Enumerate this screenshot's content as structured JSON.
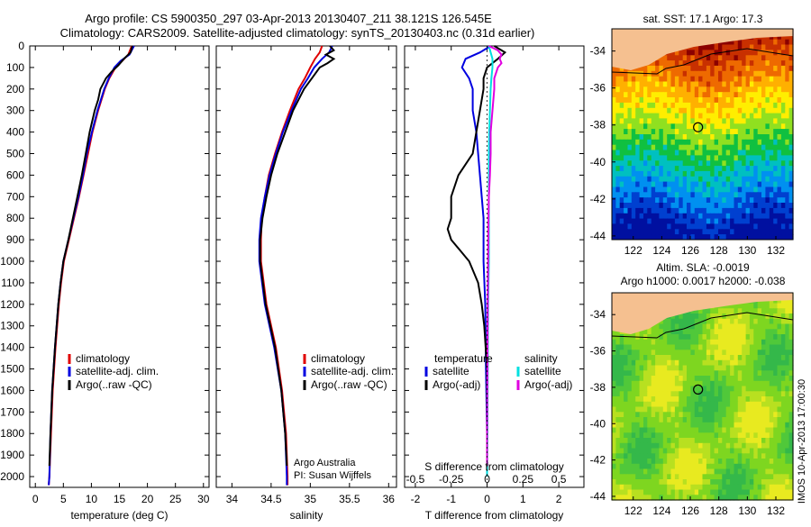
{
  "header": {
    "line1": "Argo profile: CS 5900350_297 03-Apr-2013 20130407_211 38.121S 126.545E",
    "line2": "Climatology: CARS2009. Satellite-adjusted climatology: synTS_20130403.nc (0.31d earlier)"
  },
  "colors": {
    "climatology": "#e00000",
    "satellite": "#0000e0",
    "argo": "#000000",
    "satellite_s": "#00e0e0",
    "argo_s": "#e000e0",
    "land": "#f5c090"
  },
  "chart_data": [
    {
      "type": "line",
      "panel": "temperature",
      "xlabel": "temperature (deg C)",
      "xlim": [
        -1,
        31
      ],
      "xticks": [
        0,
        5,
        10,
        15,
        20,
        25,
        30
      ],
      "ylim": [
        2050,
        0
      ],
      "yticks": [
        0,
        100,
        200,
        300,
        400,
        500,
        600,
        700,
        800,
        900,
        1000,
        1100,
        1200,
        1300,
        1400,
        1500,
        1600,
        1700,
        1800,
        1900,
        2000
      ],
      "legend": [
        "climatology",
        "satellite-adj. clim.",
        "Argo(..raw -QC)"
      ],
      "series": [
        {
          "name": "climatology",
          "color": "#e00000",
          "depth": [
            0,
            40,
            70,
            100,
            150,
            200,
            300,
            400,
            500,
            600,
            700,
            800,
            900,
            1000,
            1100,
            1200,
            1400,
            1600,
            1800,
            2000,
            2040
          ],
          "values": [
            17.2,
            16.6,
            15.5,
            14.3,
            13.2,
            12.4,
            11.2,
            10.2,
            9.4,
            8.6,
            7.8,
            6.9,
            6.0,
            5.1,
            4.6,
            4.2,
            3.6,
            3.1,
            2.8,
            2.5,
            2.4
          ]
        },
        {
          "name": "satellite-adj. clim.",
          "color": "#0000e0",
          "depth": [
            0,
            40,
            70,
            100,
            150,
            200,
            300,
            400,
            500,
            600,
            700,
            800,
            900,
            1000,
            1100,
            1200,
            1400,
            1600,
            1800,
            2000,
            2040
          ],
          "values": [
            17.6,
            16.8,
            15.2,
            14.1,
            13.1,
            12.3,
            11.1,
            10.1,
            9.2,
            8.5,
            7.7,
            6.8,
            5.9,
            5.0,
            4.5,
            4.1,
            3.5,
            3.0,
            2.7,
            2.5,
            2.4
          ]
        },
        {
          "name": "Argo(..raw -QC)",
          "color": "#000000",
          "depth": [
            0,
            30,
            60,
            90,
            120,
            150,
            200,
            250,
            300,
            400,
            500,
            600,
            700,
            800,
            900,
            1000,
            1100,
            1200,
            1400,
            1600,
            1800,
            1950
          ],
          "values": [
            17.3,
            17.0,
            15.8,
            14.8,
            13.6,
            12.6,
            11.6,
            11.2,
            10.6,
            9.7,
            9.0,
            8.3,
            7.5,
            6.7,
            5.9,
            5.0,
            4.5,
            4.1,
            3.5,
            3.0,
            2.7,
            2.5
          ]
        }
      ]
    },
    {
      "type": "line",
      "panel": "salinity",
      "xlabel": "salinity",
      "xlim": [
        33.8,
        36.1
      ],
      "xticks": [
        34,
        34.5,
        35,
        35.5,
        36
      ],
      "ylim": [
        2050,
        0
      ],
      "legend": [
        "climatology",
        "satellite-adj. clim.",
        "Argo(..raw -QC)"
      ],
      "annotation": [
        "Argo Australia",
        "PI: Susan Wijffels"
      ],
      "series": [
        {
          "name": "climatology",
          "color": "#e00000",
          "depth": [
            0,
            30,
            60,
            100,
            150,
            200,
            300,
            400,
            500,
            600,
            700,
            800,
            900,
            1000,
            1200,
            1400,
            1600,
            1800,
            2000,
            2040
          ],
          "values": [
            35.15,
            35.12,
            35.06,
            35.0,
            34.93,
            34.85,
            34.74,
            34.64,
            34.55,
            34.47,
            34.42,
            34.38,
            34.37,
            34.37,
            34.44,
            34.56,
            34.64,
            34.69,
            34.71,
            34.71
          ]
        },
        {
          "name": "satellite-adj. clim.",
          "color": "#0000e0",
          "depth": [
            0,
            30,
            60,
            100,
            150,
            200,
            300,
            400,
            500,
            600,
            700,
            800,
            900,
            1000,
            1200,
            1400,
            1600,
            1800,
            2000,
            2040
          ],
          "values": [
            35.28,
            35.24,
            35.15,
            35.05,
            34.97,
            34.88,
            34.76,
            34.65,
            34.56,
            34.48,
            34.42,
            34.37,
            34.35,
            34.35,
            34.42,
            34.54,
            34.63,
            34.68,
            34.7,
            34.7
          ]
        },
        {
          "name": "Argo(..raw -QC)",
          "color": "#000000",
          "depth": [
            0,
            20,
            40,
            60,
            80,
            100,
            150,
            200,
            300,
            400,
            500,
            600,
            700,
            800,
            900,
            1000,
            1200,
            1400,
            1600,
            1800,
            1950
          ],
          "values": [
            35.25,
            35.3,
            35.2,
            35.3,
            35.22,
            35.12,
            35.02,
            34.92,
            34.78,
            34.68,
            34.58,
            34.5,
            34.44,
            34.39,
            34.36,
            34.36,
            34.43,
            34.55,
            34.63,
            34.68,
            34.7
          ]
        }
      ]
    },
    {
      "type": "line",
      "panel": "difference",
      "xlabel": "T difference from climatology",
      "toplabel": "S difference from climatology",
      "xlim": [
        -2.3,
        2.7
      ],
      "xticks": [
        -2,
        -1,
        0,
        1,
        2
      ],
      "top_ticks": [
        "-0.5",
        "-0.25",
        "0",
        "0.25",
        "0.5"
      ],
      "top_tick_values": [
        -0.5,
        -0.25,
        0,
        0.25,
        0.5
      ],
      "ylim": [
        2050,
        0
      ],
      "legend_temperature_title": "temperature",
      "legend_salinity_title": "salinity",
      "legend_temperature": [
        "satellite",
        "Argo(-adj)"
      ],
      "legend_salinity": [
        "satellite",
        "Argo(-adj)"
      ],
      "series": [
        {
          "name": "satellite",
          "group": "temperature",
          "color": "#0000e0",
          "depth": [
            0,
            30,
            60,
            100,
            150,
            200,
            300,
            400,
            500,
            600,
            700,
            800,
            1000,
            1200,
            1500,
            1800,
            2000
          ],
          "values": [
            0.1,
            -0.2,
            -0.6,
            -0.7,
            -0.5,
            -0.4,
            -0.4,
            -0.3,
            -0.25,
            -0.2,
            -0.15,
            -0.1,
            -0.1,
            -0.05,
            -0.03,
            0.0,
            0.0
          ]
        },
        {
          "name": "Argo(-adj)",
          "group": "temperature",
          "color": "#000000",
          "depth": [
            0,
            30,
            60,
            100,
            150,
            200,
            300,
            400,
            500,
            600,
            700,
            800,
            850,
            900,
            1000,
            1100,
            1200,
            1300,
            1500,
            1800,
            1950
          ],
          "values": [
            0.2,
            0.5,
            0.3,
            0.0,
            -0.1,
            -0.1,
            -0.2,
            -0.3,
            -0.4,
            -0.8,
            -1.0,
            -1.0,
            -1.1,
            -1.0,
            -0.5,
            -0.25,
            -0.15,
            -0.08,
            0.0,
            0.0,
            0.0
          ]
        },
        {
          "name": "satellite",
          "group": "salinity",
          "color": "#00e0e0",
          "depth": [
            0,
            30,
            60,
            100,
            150,
            200,
            300,
            400,
            500,
            600,
            700,
            800,
            1000,
            1200,
            1500,
            1800,
            2000
          ],
          "values": [
            0.05,
            0.1,
            0.15,
            0.15,
            0.12,
            0.1,
            0.08,
            0.06,
            0.05,
            0.05,
            0.05,
            0.05,
            0.05,
            0.03,
            0.02,
            0.01,
            0.0
          ]
        },
        {
          "name": "Argo(-adj)",
          "group": "salinity",
          "color": "#e000e0",
          "depth": [
            0,
            20,
            40,
            60,
            80,
            100,
            150,
            200,
            300,
            400,
            500,
            600,
            700,
            800,
            1000,
            1200,
            1500,
            1800,
            1950
          ],
          "values": [
            0.05,
            0.3,
            0.4,
            0.35,
            0.4,
            0.3,
            0.2,
            0.2,
            0.15,
            0.1,
            0.1,
            0.08,
            0.05,
            0.04,
            0.03,
            0.02,
            0.01,
            0.0,
            0.0
          ]
        }
      ]
    },
    {
      "type": "heatmap",
      "panel": "sst-map",
      "title": "sat. SST: 17.1  Argo: 17.3",
      "xlim": [
        120.5,
        133.2
      ],
      "ylim": [
        -44.2,
        -32.8
      ],
      "xticks": [
        122,
        124,
        126,
        128,
        130,
        132
      ],
      "yticks": [
        -34,
        -36,
        -38,
        -40,
        -42,
        -44
      ],
      "marker": {
        "lon": 126.545,
        "lat": -38.121
      },
      "colors_warm_to_cold": [
        "#8b0000",
        "#c83000",
        "#ee6a00",
        "#ffb000",
        "#ffee00",
        "#90e020",
        "#10c040",
        "#00c0c0",
        "#0090f0",
        "#0040d0",
        "#0010a0"
      ]
    },
    {
      "type": "heatmap",
      "panel": "sla-map",
      "title_lines": [
        "Altim. SLA: -0.0019",
        "Argo h1000: 0.0017  h2000: -0.038"
      ],
      "xlim": [
        120.5,
        133.2
      ],
      "ylim": [
        -44.2,
        -32.8
      ],
      "xticks": [
        122,
        124,
        126,
        128,
        130,
        132
      ],
      "yticks": [
        -34,
        -36,
        -38,
        -40,
        -42,
        -44
      ],
      "marker": {
        "lon": 126.545,
        "lat": -38.121
      }
    }
  ],
  "side_label": "IMOS 10-Apr-2013 17:00:30"
}
